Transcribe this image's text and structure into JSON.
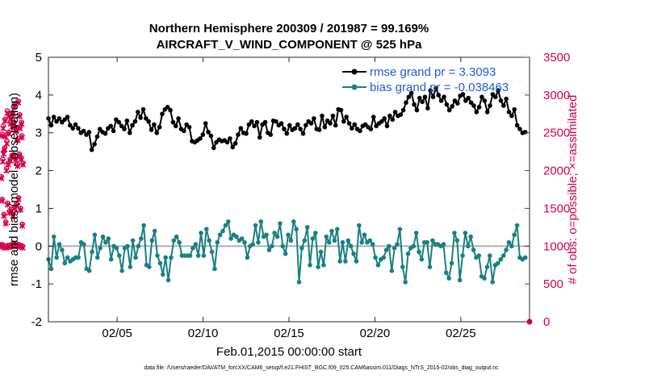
{
  "chart_data": {
    "type": "line",
    "title_line1": "Northern Hemisphere 200309 / 201987 = 99.169%",
    "title_line2": "AIRCRAFT_V_WIND_COMPONENT @ 525 hPa",
    "xlabel": "Feb.01,2015 00:00:00 start",
    "ylabel_left": "rmse and bias (model - observation)",
    "ylabel_right": "# of obs: o=possible; ×=assimilated",
    "footnote": "data file: /Users/raeder/DAI/ATM_forcXX/CAM6_setup/f.e21.FHIST_BGC.f09_025.CAM6assim.011/Diags_NTrS_2015-02/obs_diag_output.nc",
    "xlim": [
      1,
      29
    ],
    "ylim_left": [
      -2,
      5
    ],
    "ylim_right": [
      0,
      3500
    ],
    "x_ticks": [
      5,
      10,
      15,
      20,
      25
    ],
    "x_tick_labels": [
      "02/05",
      "02/10",
      "02/15",
      "02/20",
      "02/25"
    ],
    "y_left_ticks": [
      "-2",
      "-1",
      "0",
      "1",
      "2",
      "3",
      "4",
      "5"
    ],
    "y_right_ticks": [
      "0",
      "500",
      "1000",
      "1500",
      "2000",
      "2500",
      "3000",
      "3500"
    ],
    "colors": {
      "rmse": "#000000",
      "bias": "#1a8080",
      "obs": "#d6004c",
      "legend_text": "#1f5bd6",
      "zero_line": "#b0b0b0"
    },
    "series": [
      {
        "name": "rmse",
        "legend": "rmse grand pr = 3.3093",
        "values": [
          3.38,
          3.2,
          3.42,
          3.3,
          3.38,
          3.28,
          3.35,
          3.42,
          3.2,
          3.12,
          3.22,
          3.12,
          3.0,
          3.05,
          2.95,
          3.02,
          2.55,
          2.7,
          2.9,
          3.1,
          3.02,
          2.98,
          3.12,
          3.18,
          3.05,
          3.35,
          3.28,
          3.18,
          3.1,
          3.32,
          3.0,
          3.2,
          3.3,
          3.55,
          3.4,
          3.62,
          3.38,
          3.3,
          3.08,
          3.22,
          3.0,
          3.15,
          3.5,
          3.62,
          3.68,
          3.6,
          3.28,
          3.18,
          3.38,
          3.1,
          3.05,
          3.22,
          3.15,
          2.78,
          2.75,
          2.8,
          2.85,
          2.95,
          3.25,
          3.02,
          2.92,
          2.6,
          2.75,
          2.82,
          2.78,
          2.8,
          2.75,
          2.85,
          2.62,
          2.72,
          2.95,
          3.12,
          3.0,
          2.98,
          3.22,
          3.3,
          3.18,
          3.28,
          2.88,
          3.22,
          3.28,
          3.0,
          2.95,
          3.32,
          3.3,
          3.2,
          3.25,
          3.1,
          2.98,
          3.2,
          3.08,
          3.12,
          3.22,
          3.1,
          2.98,
          3.2,
          3.3,
          3.25,
          3.38,
          3.1,
          3.08,
          3.45,
          3.15,
          3.32,
          3.25,
          3.45,
          3.2,
          3.62,
          3.6,
          3.3,
          3.42,
          3.25,
          3.12,
          3.22,
          3.1,
          3.05,
          3.18,
          3.22,
          3.15,
          3.1,
          3.42,
          3.18,
          3.25,
          3.3,
          3.38,
          3.18,
          3.45,
          3.35,
          3.55,
          3.45,
          3.48,
          3.6,
          3.8,
          3.95,
          4.05,
          3.75,
          3.6,
          3.92,
          3.82,
          3.95,
          3.65,
          4.12,
          3.95,
          4.18,
          4.0,
          3.85,
          3.95,
          3.75,
          3.6,
          3.7,
          3.85,
          3.78,
          3.98,
          4.02,
          3.85,
          3.92,
          3.8,
          3.72,
          3.55,
          3.68,
          3.95,
          3.85,
          3.55,
          3.72,
          4.02,
          3.95,
          4.12,
          3.85,
          3.72,
          3.9,
          3.55,
          3.45,
          3.62,
          3.2,
          3.1,
          3.0,
          3.02
        ]
      },
      {
        "name": "bias",
        "legend": "bias grand pr = -0.038463",
        "values": [
          -0.35,
          -0.6,
          0.25,
          -0.3,
          0.05,
          -0.1,
          -0.45,
          -0.3,
          -0.4,
          -0.35,
          -0.3,
          -0.3,
          0.1,
          0.05,
          -0.6,
          -0.65,
          -0.15,
          0.3,
          -0.3,
          -0.05,
          0.25,
          0.1,
          0.2,
          -0.35,
          0.0,
          -0.05,
          -0.25,
          -0.65,
          -0.05,
          0.0,
          -0.55,
          0.15,
          -0.3,
          0.0,
          0.2,
          0.55,
          -0.5,
          -0.55,
          0.15,
          0.4,
          -0.25,
          -0.45,
          -0.75,
          -0.3,
          -0.9,
          -0.3,
          0.15,
          0.25,
          0.1,
          -0.25,
          -0.25,
          -0.25,
          -0.25,
          -0.05,
          0.05,
          -0.25,
          0.35,
          -0.25,
          0.45,
          0.15,
          -0.15,
          -0.6,
          0.1,
          0.3,
          0.4,
          0.55,
          0.65,
          0.2,
          0.3,
          0.25,
          0.15,
          0.2,
          0.1,
          -0.3,
          0.0,
          0.05,
          0.55,
          0.1,
          0.65,
          0.25,
          0.3,
          -0.1,
          0.0,
          0.35,
          0.25,
          0.6,
          0.0,
          -0.2,
          0.3,
          0.15,
          0.65,
          0.45,
          -0.95,
          -0.05,
          0.15,
          0.5,
          -0.5,
          0.2,
          0.35,
          -0.55,
          -0.15,
          -0.5,
          0.25,
          0.1,
          0.4,
          0.15,
          0.45,
          -0.4,
          0.1,
          -0.4,
          0.15,
          0.0,
          -0.2,
          -0.4,
          0.55,
          0.1,
          0.3,
          0.1,
          0.15,
          0.05,
          -0.3,
          -0.5,
          -0.35,
          -0.3,
          -0.1,
          0.0,
          -0.65,
          -0.05,
          0.05,
          0.45,
          -0.55,
          -0.95,
          -0.2,
          -0.05,
          0.0,
          0.35,
          -0.15,
          -0.35,
          0.1,
          0.1,
          -0.55,
          0.15,
          0.05,
          0.05,
          0.0,
          0.05,
          -0.7,
          -0.85,
          -0.45,
          0.35,
          0.15,
          -0.9,
          -0.25,
          0.35,
          0.0,
          0.25,
          -0.1,
          -0.3,
          -0.25,
          -0.8,
          -0.85,
          -0.55,
          -0.25,
          -0.95,
          -0.5,
          -0.45,
          -0.35,
          -0.25,
          -0.1,
          0.1,
          0.0,
          0.3,
          0.55,
          -0.3,
          -0.35,
          -0.3
        ]
      },
      {
        "name": "obs_possible",
        "values": [
          1020,
          1920,
          2480,
          1620,
          1020,
          2150,
          2590,
          2250,
          1420,
          1000,
          2300,
          2680,
          2470,
          1320,
          1000,
          2030,
          2390,
          2790,
          1570,
          1010,
          2100,
          2510,
          2740,
          1460,
          1010,
          2150,
          2640,
          2710,
          1490,
          1020,
          2200,
          2600,
          2770,
          1420,
          1040,
          2210,
          2640,
          2870,
          1520,
          1030,
          2160,
          2540,
          2560,
          1560,
          1020,
          2080,
          2420,
          2920,
          1640,
          1020,
          2220,
          2740,
          2580,
          1500,
          1010,
          2170,
          2640,
          2460,
          1290,
          1000,
          2100
        ]
      },
      {
        "name": "obs_assimilated",
        "values": [
          1000,
          1900,
          2460,
          1600,
          1000,
          2120,
          2560,
          2220,
          1400,
          980,
          2280,
          2660,
          2450,
          1300,
          980,
          2000,
          2360,
          2760,
          1550,
          990,
          2080,
          2490,
          2720,
          1440,
          990,
          2130,
          2620,
          2690,
          1470,
          1000,
          2180,
          2580,
          2750,
          1400,
          1020,
          2190,
          2620,
          2850,
          1500,
          1010,
          2140,
          2520,
          2540,
          1540,
          1000,
          2060,
          2400,
          2900,
          1620,
          1000,
          2200,
          2720,
          2560,
          1480,
          990,
          2150,
          2620,
          2440,
          1270,
          980,
          2080
        ]
      }
    ]
  }
}
